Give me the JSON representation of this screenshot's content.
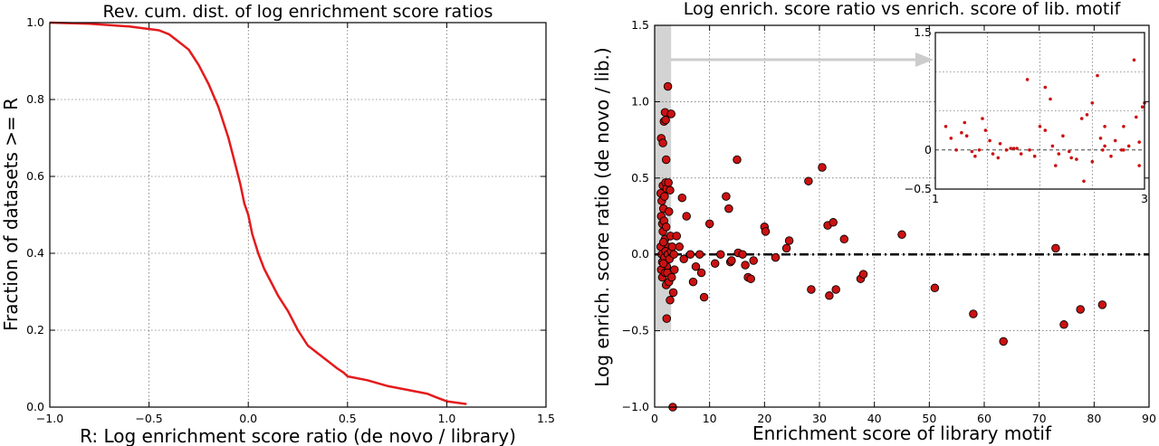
{
  "chart_data": [
    {
      "type": "line",
      "title": "Rev. cum. dist. of log enrichment score ratios",
      "xlabel": "R: Log enrichment score ratio (de novo / library)",
      "ylabel": "Fraction of datasets >= R",
      "xlim": [
        -1.0,
        1.5
      ],
      "ylim": [
        0.0,
        1.0
      ],
      "xticks": [
        "−1.0",
        "−0.5",
        "0.0",
        "0.5",
        "1.0",
        "1.5"
      ],
      "yticks": [
        "0.0",
        "0.2",
        "0.4",
        "0.6",
        "0.8",
        "1.0"
      ],
      "grid": true,
      "series": [
        {
          "color": "#e41a1c",
          "x": [
            -1.0,
            -0.8,
            -0.6,
            -0.45,
            -0.4,
            -0.35,
            -0.3,
            -0.25,
            -0.2,
            -0.15,
            -0.1,
            -0.07,
            -0.04,
            -0.02,
            0.0,
            0.02,
            0.05,
            0.08,
            0.12,
            0.15,
            0.2,
            0.25,
            0.3,
            0.35,
            0.4,
            0.45,
            0.48,
            0.5,
            0.6,
            0.7,
            0.8,
            0.9,
            0.95,
            1.0,
            1.1
          ],
          "y": [
            1.0,
            0.997,
            0.99,
            0.98,
            0.97,
            0.95,
            0.93,
            0.89,
            0.84,
            0.78,
            0.7,
            0.64,
            0.58,
            0.53,
            0.5,
            0.45,
            0.4,
            0.36,
            0.32,
            0.29,
            0.25,
            0.2,
            0.16,
            0.14,
            0.12,
            0.1,
            0.09,
            0.08,
            0.07,
            0.055,
            0.045,
            0.035,
            0.025,
            0.015,
            0.008
          ]
        }
      ]
    },
    {
      "type": "scatter",
      "title": "Log enrich. score ratio vs enrich. score of lib. motif",
      "xlabel": "Enrichment score of library motif",
      "ylabel": "Log enrich. score ratio (de novo / lib.)",
      "xlim": [
        0,
        90
      ],
      "ylim": [
        -1.0,
        1.5
      ],
      "xticks": [
        "0",
        "10",
        "20",
        "30",
        "40",
        "50",
        "60",
        "70",
        "80",
        "90"
      ],
      "yticks": [
        "−1.0",
        "−0.5",
        "0.0",
        "0.5",
        "1.0",
        "1.5"
      ],
      "grid": true,
      "reference_line_y": 0,
      "highlight_band": {
        "x": [
          0,
          3
        ],
        "y": [
          -0.5,
          1.5
        ]
      },
      "marker_color": "#cc1111",
      "points": [
        [
          1.2,
          0.76
        ],
        [
          1.5,
          0.73
        ],
        [
          1.7,
          0.87
        ],
        [
          1.9,
          0.93
        ],
        [
          2.0,
          0.88
        ],
        [
          2.1,
          0.62
        ],
        [
          2.4,
          1.1
        ],
        [
          3.0,
          0.92
        ],
        [
          3.3,
          -1.0
        ],
        [
          1.1,
          0.4
        ],
        [
          1.3,
          0.35
        ],
        [
          1.5,
          0.45
        ],
        [
          1.6,
          0.3
        ],
        [
          1.8,
          0.38
        ],
        [
          2.0,
          0.47
        ],
        [
          2.2,
          0.43
        ],
        [
          2.5,
          0.47
        ],
        [
          2.8,
          0.42
        ],
        [
          1.2,
          0.25
        ],
        [
          1.4,
          0.2
        ],
        [
          1.5,
          0.15
        ],
        [
          1.7,
          0.22
        ],
        [
          1.9,
          0.1
        ],
        [
          2.1,
          0.18
        ],
        [
          2.3,
          0.05
        ],
        [
          2.6,
          0.28
        ],
        [
          2.9,
          0.12
        ],
        [
          1.1,
          0.05
        ],
        [
          1.3,
          0.0
        ],
        [
          1.4,
          -0.05
        ],
        [
          1.6,
          0.08
        ],
        [
          1.8,
          -0.02
        ],
        [
          2.0,
          0.02
        ],
        [
          2.2,
          -0.08
        ],
        [
          2.4,
          0.0
        ],
        [
          2.7,
          -0.03
        ],
        [
          3.0,
          0.02
        ],
        [
          3.2,
          0.05
        ],
        [
          3.5,
          0.0
        ],
        [
          1.2,
          -0.1
        ],
        [
          1.4,
          -0.15
        ],
        [
          1.6,
          -0.06
        ],
        [
          1.9,
          -0.12
        ],
        [
          2.1,
          -0.2
        ],
        [
          2.3,
          -0.12
        ],
        [
          2.6,
          -0.18
        ],
        [
          3.1,
          -0.15
        ],
        [
          3.4,
          -0.25
        ],
        [
          2.2,
          -0.42
        ],
        [
          2.8,
          -0.3
        ],
        [
          3.6,
          -0.1
        ],
        [
          4.0,
          0.12
        ],
        [
          4.5,
          0.05
        ],
        [
          5.0,
          0.37
        ],
        [
          5.3,
          -0.03
        ],
        [
          5.8,
          0.25
        ],
        [
          6.5,
          0.0
        ],
        [
          7.0,
          -0.18
        ],
        [
          7.5,
          -0.08
        ],
        [
          8.2,
          0.0
        ],
        [
          8.5,
          -0.12
        ],
        [
          9.0,
          -0.28
        ],
        [
          10,
          0.2
        ],
        [
          11,
          -0.06
        ],
        [
          12,
          0.0
        ],
        [
          13,
          0.38
        ],
        [
          13.5,
          0.3
        ],
        [
          13.8,
          -0.05
        ],
        [
          14,
          -0.04
        ],
        [
          15,
          0.62
        ],
        [
          15.2,
          0.01
        ],
        [
          16,
          0.0
        ],
        [
          16.5,
          -0.07
        ],
        [
          17,
          -0.15
        ],
        [
          17.5,
          -0.16
        ],
        [
          18,
          -0.04
        ],
        [
          20,
          0.18
        ],
        [
          20.2,
          0.15
        ],
        [
          22,
          -0.02
        ],
        [
          24,
          0.04
        ],
        [
          24.5,
          0.09
        ],
        [
          28,
          0.48
        ],
        [
          28.5,
          -0.23
        ],
        [
          30.5,
          0.57
        ],
        [
          31.5,
          0.19
        ],
        [
          31.8,
          -0.27
        ],
        [
          32.5,
          0.21
        ],
        [
          33,
          -0.23
        ],
        [
          34.5,
          0.1
        ],
        [
          37.5,
          -0.16
        ],
        [
          38,
          -0.13
        ],
        [
          45,
          0.13
        ],
        [
          51,
          -0.22
        ],
        [
          58,
          -0.39
        ],
        [
          63.5,
          -0.57
        ],
        [
          73,
          0.04
        ],
        [
          74.5,
          -0.46
        ],
        [
          77.5,
          -0.36
        ],
        [
          81.5,
          -0.33
        ]
      ],
      "inset": {
        "xlim": [
          1,
          3
        ],
        "ylim": [
          -0.5,
          1.5
        ],
        "xticks": [
          "1",
          "3"
        ],
        "yticks": [
          "−0.5",
          "0",
          "1.5"
        ],
        "points": [
          [
            1.1,
            0.3
          ],
          [
            1.15,
            0.15
          ],
          [
            1.2,
            0.0
          ],
          [
            1.25,
            0.22
          ],
          [
            1.28,
            0.35
          ],
          [
            1.3,
            0.18
          ],
          [
            1.35,
            -0.02
          ],
          [
            1.38,
            -0.08
          ],
          [
            1.42,
            0.0
          ],
          [
            1.48,
            0.25
          ],
          [
            1.52,
            0.12
          ],
          [
            1.55,
            -0.05
          ],
          [
            1.6,
            -0.1
          ],
          [
            1.62,
            0.08
          ],
          [
            1.68,
            0.0
          ],
          [
            1.72,
            0.02
          ],
          [
            1.78,
            0.02
          ],
          [
            1.82,
            -0.05
          ],
          [
            1.88,
            0.9
          ],
          [
            1.9,
            0.0
          ],
          [
            1.95,
            -0.08
          ],
          [
            2.0,
            0.3
          ],
          [
            2.05,
            0.8
          ],
          [
            2.1,
            0.65
          ],
          [
            2.12,
            0.05
          ],
          [
            2.18,
            -0.05
          ],
          [
            2.22,
            0.18
          ],
          [
            2.28,
            -0.02
          ],
          [
            2.3,
            -0.1
          ],
          [
            2.35,
            -0.12
          ],
          [
            2.4,
            0.4
          ],
          [
            2.45,
            0.45
          ],
          [
            2.5,
            0.6
          ],
          [
            2.55,
            0.95
          ],
          [
            2.58,
            0.15
          ],
          [
            2.6,
            0.0
          ],
          [
            2.62,
            0.05
          ],
          [
            2.68,
            -0.08
          ],
          [
            2.72,
            0.12
          ],
          [
            2.78,
            0.0
          ],
          [
            2.8,
            0.3
          ],
          [
            2.85,
            0.05
          ],
          [
            2.9,
            1.15
          ],
          [
            2.92,
            0.42
          ],
          [
            2.95,
            0.1
          ],
          [
            2.98,
            0.55
          ],
          [
            3.0,
            0.6
          ],
          [
            1.45,
            0.4
          ],
          [
            1.75,
            0.02
          ],
          [
            2.15,
            -0.2
          ],
          [
            2.5,
            -0.15
          ],
          [
            2.42,
            -0.4
          ],
          [
            2.8,
            0.0
          ],
          [
            2.05,
            0.25
          ],
          [
            2.62,
            0.3
          ],
          [
            2.95,
            -0.2
          ]
        ]
      }
    }
  ]
}
